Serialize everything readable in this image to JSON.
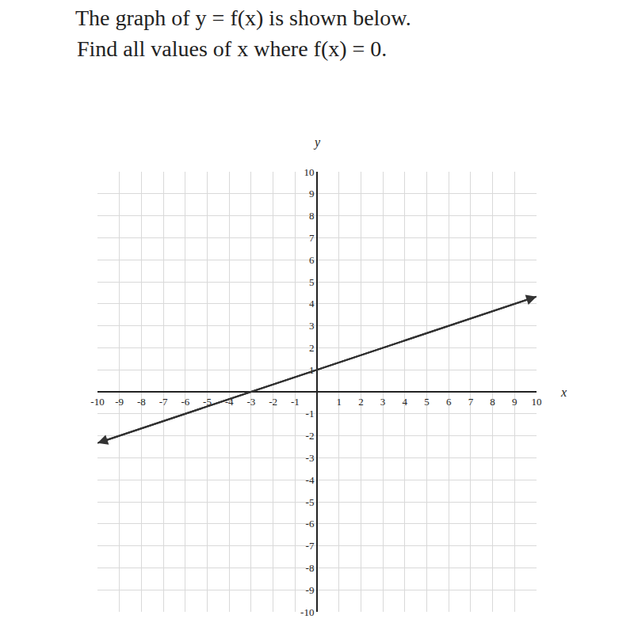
{
  "chart_data": {
    "type": "line",
    "title": "The graph of y = f(x) is shown below.",
    "subtitle": "Find all values of x where f(x) = 0.",
    "x_label": "x",
    "y_label": "y",
    "x": [
      -10,
      10
    ],
    "values": [
      -2.33,
      4.33
    ],
    "color": "#333333",
    "marker": "arrow",
    "xlim": [
      -10,
      10
    ],
    "ylim": [
      -10,
      10
    ],
    "xticks": [
      -10,
      -9,
      -8,
      -7,
      -6,
      -5,
      -4,
      -3,
      -2,
      -1,
      1,
      2,
      3,
      4,
      5,
      6,
      7,
      8,
      9,
      10
    ],
    "yticks": [
      -10,
      -9,
      -8,
      -7,
      -6,
      -5,
      -4,
      -3,
      -2,
      -1,
      1,
      2,
      3,
      4,
      5,
      6,
      7,
      8,
      9,
      10
    ],
    "grid": true
  }
}
